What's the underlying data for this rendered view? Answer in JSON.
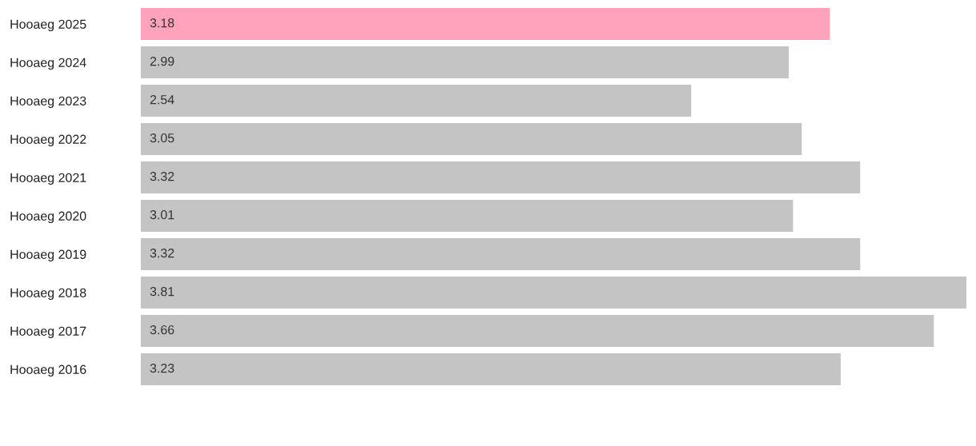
{
  "chart_data": {
    "type": "bar",
    "orientation": "horizontal",
    "data_labels": true,
    "categories": [
      "Hooaeg 2025",
      "Hooaeg 2024",
      "Hooaeg 2023",
      "Hooaeg 2022",
      "Hooaeg 2021",
      "Hooaeg 2020",
      "Hooaeg 2019",
      "Hooaeg 2018",
      "Hooaeg 2017",
      "Hooaeg 2016"
    ],
    "values": [
      3.18,
      2.99,
      2.54,
      3.05,
      3.32,
      3.01,
      3.32,
      3.81,
      3.66,
      3.23
    ],
    "colors": [
      "#ffa3bd",
      "#c4c4c4",
      "#c4c4c4",
      "#c4c4c4",
      "#c4c4c4",
      "#c4c4c4",
      "#c4c4c4",
      "#c4c4c4",
      "#c4c4c4",
      "#c4c4c4"
    ],
    "grid": false,
    "legend": false,
    "tick_labels": "y"
  }
}
